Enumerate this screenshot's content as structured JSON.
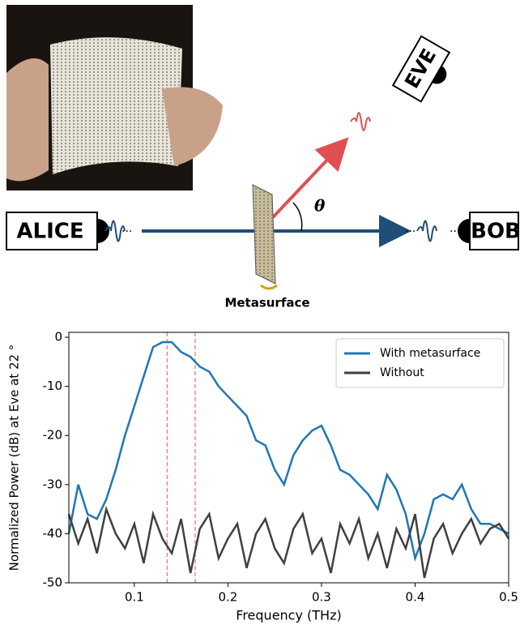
{
  "diagram": {
    "alice": "ALICE",
    "bob": "BOB",
    "eve": "EVE",
    "metasurface": "Metasurface",
    "angle": "θ"
  },
  "chart_data": {
    "type": "line",
    "xlabel": "Frequency (THz)",
    "ylabel": "Normalized Power (dB) at Eve at 22 °",
    "x": [
      0.03,
      0.04,
      0.05,
      0.06,
      0.07,
      0.08,
      0.09,
      0.1,
      0.11,
      0.12,
      0.13,
      0.14,
      0.15,
      0.16,
      0.17,
      0.18,
      0.19,
      0.2,
      0.21,
      0.22,
      0.23,
      0.24,
      0.25,
      0.26,
      0.27,
      0.28,
      0.29,
      0.3,
      0.31,
      0.32,
      0.33,
      0.34,
      0.35,
      0.36,
      0.37,
      0.38,
      0.39,
      0.4,
      0.41,
      0.42,
      0.43,
      0.44,
      0.45,
      0.46,
      0.47,
      0.48,
      0.49,
      0.5
    ],
    "series": [
      {
        "name": "With metasurface",
        "color": "#1f77b4",
        "values": [
          -40,
          -30,
          -36,
          -37,
          -33,
          -27,
          -20,
          -14,
          -8,
          -2,
          -1,
          -1,
          -3,
          -4,
          -6,
          -7,
          -10,
          -12,
          -14,
          -16,
          -21,
          -22,
          -27,
          -30,
          -24,
          -21,
          -19,
          -18,
          -22,
          -27,
          -28,
          -30,
          -32,
          -35,
          -28,
          -31,
          -36,
          -45,
          -40,
          -33,
          -32,
          -33,
          -30,
          -35,
          -38,
          -38,
          -39,
          -40
        ]
      },
      {
        "name": "Without",
        "color": "#404040",
        "values": [
          -36,
          -42,
          -37,
          -44,
          -35,
          -40,
          -43,
          -38,
          -46,
          -36,
          -41,
          -44,
          -37,
          -48,
          -39,
          -36,
          -45,
          -41,
          -38,
          -47,
          -40,
          -37,
          -43,
          -46,
          -39,
          -36,
          -44,
          -41,
          -48,
          -38,
          -42,
          -37,
          -45,
          -40,
          -47,
          -39,
          -43,
          -36,
          -49,
          -41,
          -38,
          -44,
          -40,
          -37,
          -42,
          -39,
          -38,
          -41
        ]
      }
    ],
    "vlines": [
      0.135,
      0.165
    ],
    "vline_color": "#e8736b",
    "xlim": [
      0.03,
      0.5
    ],
    "ylim": [
      -50,
      1
    ],
    "xticks": [
      0.1,
      0.2,
      0.3,
      0.4,
      0.5
    ],
    "yticks": [
      0,
      -10,
      -20,
      -30,
      -40,
      -50
    ],
    "legend": "upper right"
  }
}
